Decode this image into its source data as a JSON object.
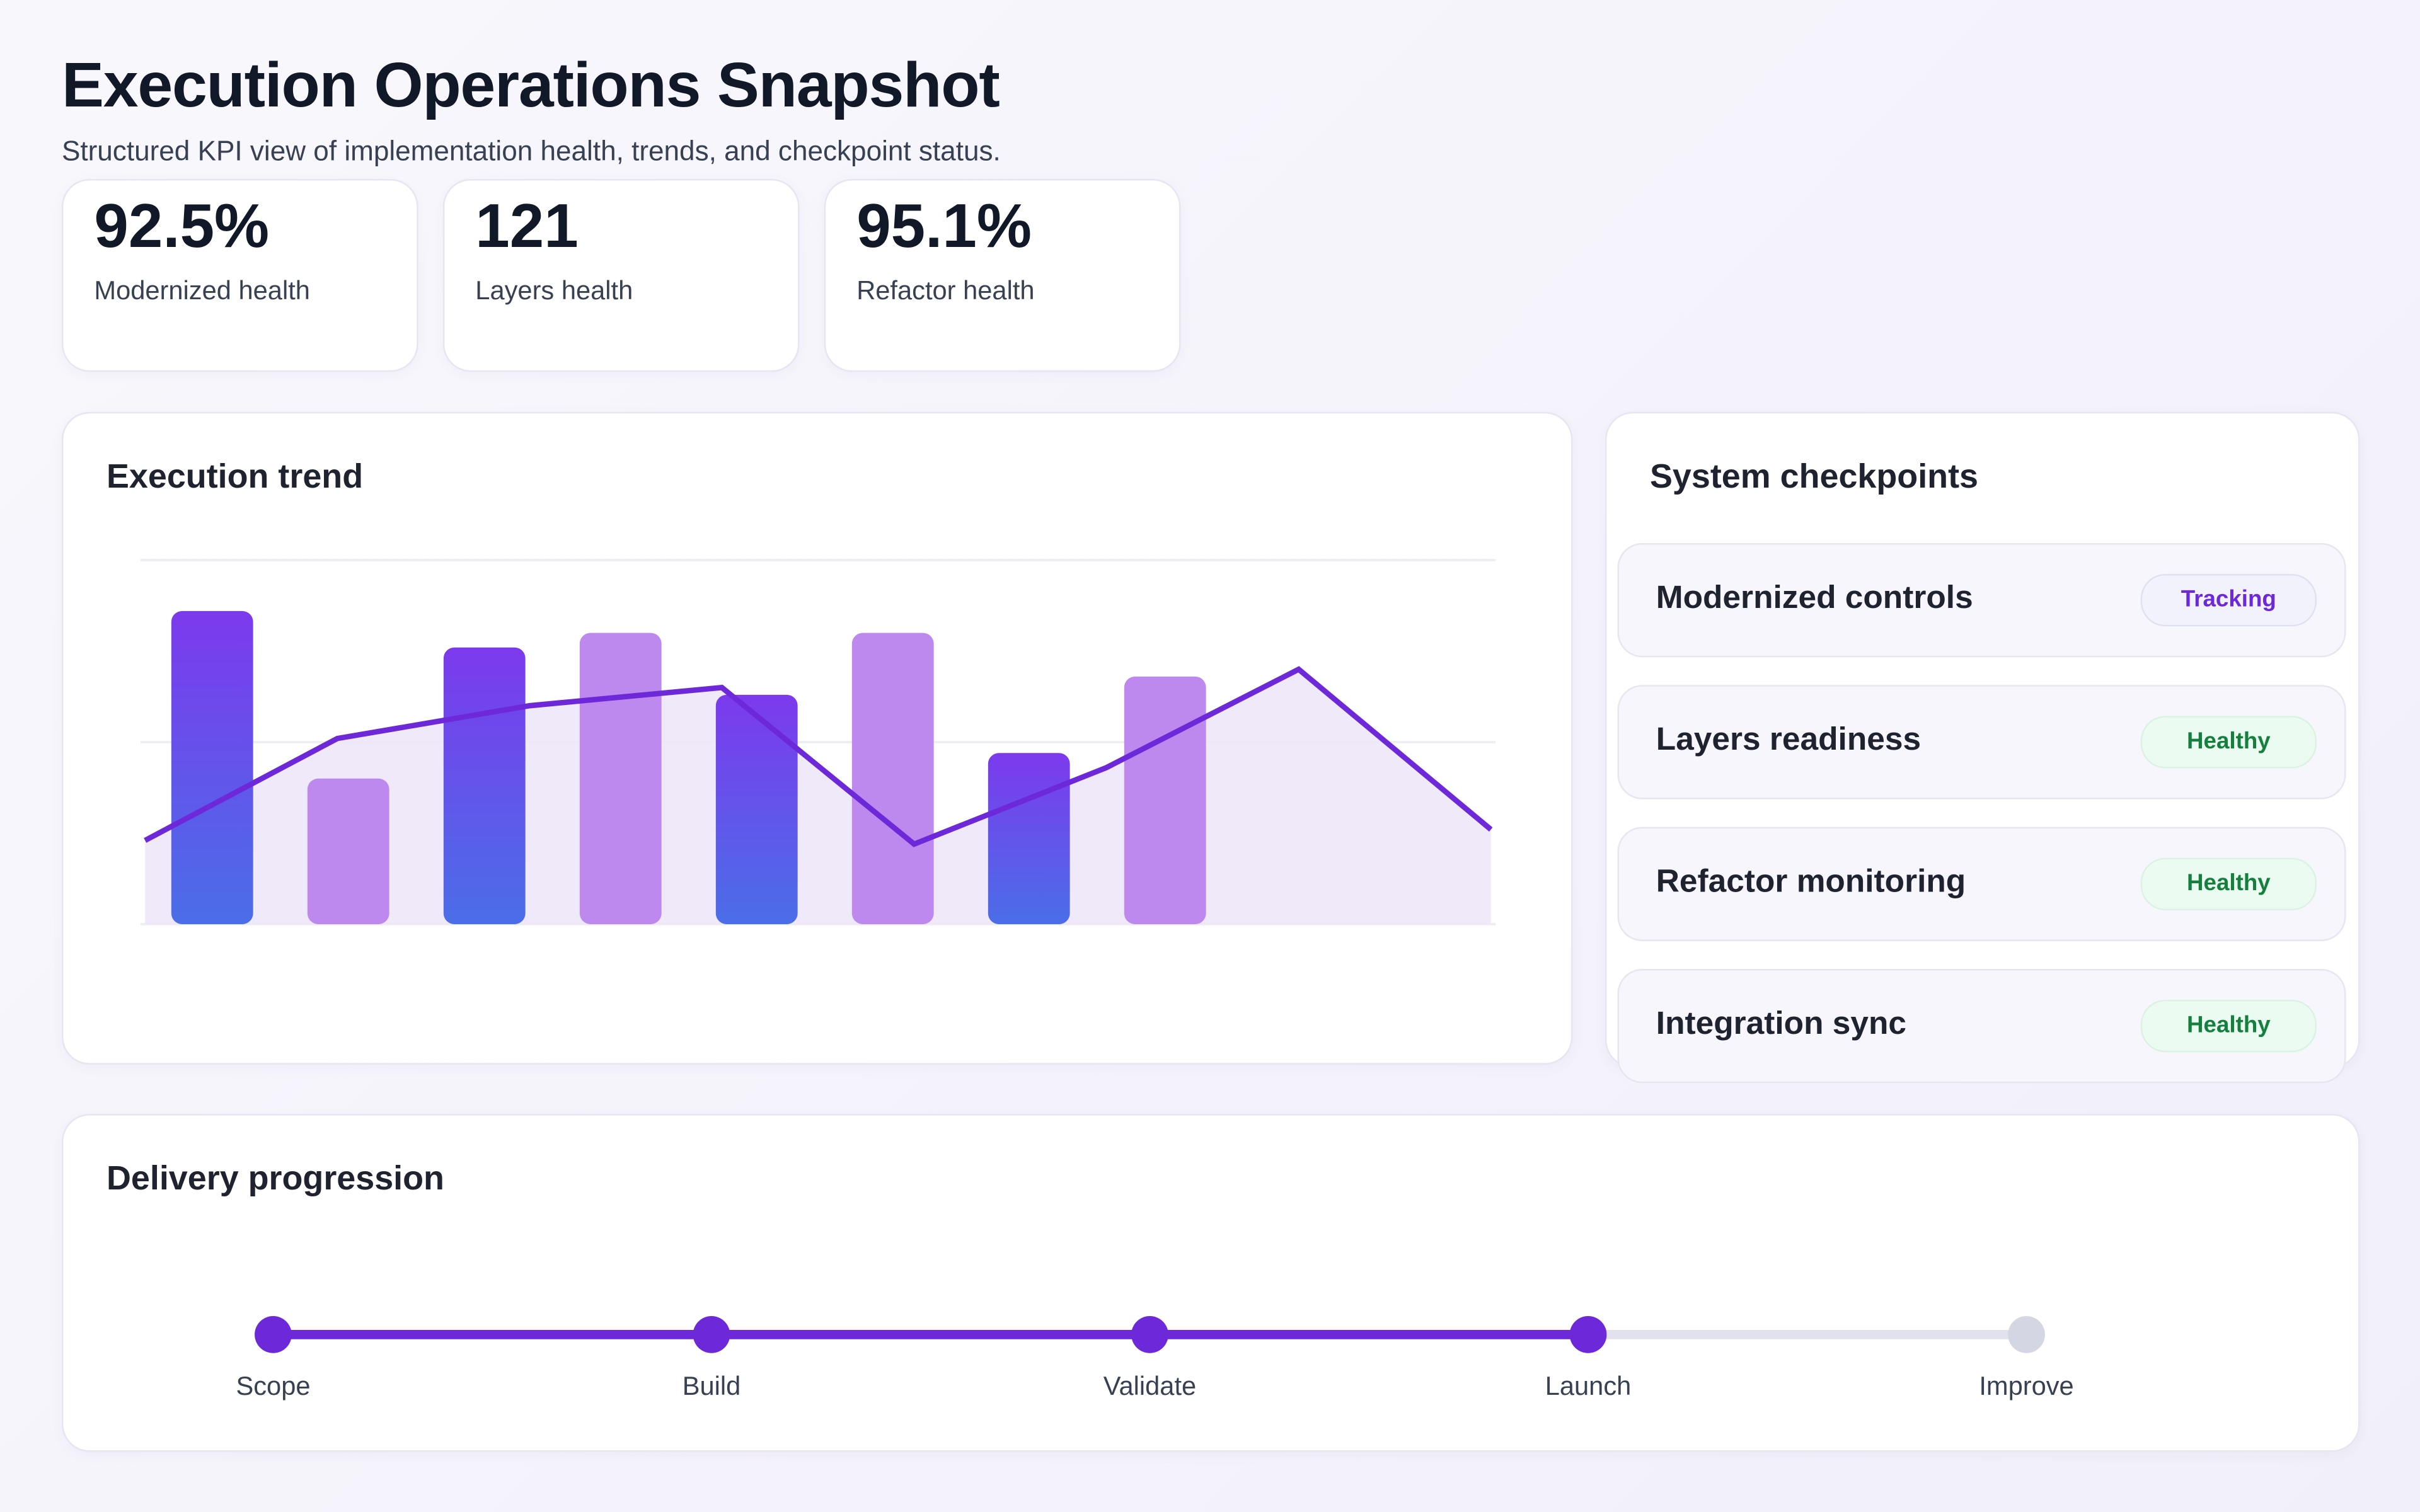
{
  "header": {
    "title": "Execution Operations Snapshot",
    "subtitle": "Structured KPI view of implementation health, trends, and checkpoint status."
  },
  "kpis": [
    {
      "value": "92.5%",
      "label": "Modernized health"
    },
    {
      "value": "121",
      "label": "Layers health"
    },
    {
      "value": "95.1%",
      "label": "Refactor health"
    }
  ],
  "trend": {
    "title": "Execution trend"
  },
  "chart_data": {
    "type": "bar+line",
    "title": "Execution trend",
    "grid": true,
    "ylim": [
      0,
      100
    ],
    "bars": [
      86,
      40,
      76,
      80,
      63,
      80,
      47,
      68
    ],
    "bar_colors": [
      "gradient",
      "light",
      "gradient",
      "light",
      "gradient",
      "light",
      "gradient",
      "light"
    ],
    "line": [
      23,
      51,
      60,
      65,
      22,
      43,
      70,
      26
    ],
    "colors": {
      "bar_gradient_top": "#7c3aed",
      "bar_gradient_bottom": "#4a6ee8",
      "bar_light": "#bd89ef",
      "line": "#6d28d9",
      "area": "#ede5f8"
    }
  },
  "checkpoints": {
    "title": "System checkpoints",
    "items": [
      {
        "label": "Modernized controls",
        "status": "Tracking"
      },
      {
        "label": "Layers readiness",
        "status": "Healthy"
      },
      {
        "label": "Refactor monitoring",
        "status": "Healthy"
      },
      {
        "label": "Integration sync",
        "status": "Healthy"
      }
    ]
  },
  "delivery": {
    "title": "Delivery progression",
    "steps": [
      {
        "label": "Scope",
        "done": true
      },
      {
        "label": "Build",
        "done": true
      },
      {
        "label": "Validate",
        "done": true
      },
      {
        "label": "Launch",
        "done": true
      },
      {
        "label": "Improve",
        "done": false
      }
    ],
    "colors": {
      "done": "#6d28d9",
      "pending": "#d4d6e4"
    }
  }
}
